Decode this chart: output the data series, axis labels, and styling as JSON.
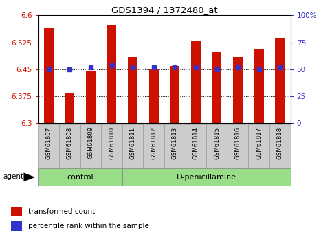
{
  "title": "GDS1394 / 1372480_at",
  "samples": [
    "GSM61807",
    "GSM61808",
    "GSM61809",
    "GSM61810",
    "GSM61811",
    "GSM61812",
    "GSM61813",
    "GSM61814",
    "GSM61815",
    "GSM61816",
    "GSM61817",
    "GSM61818"
  ],
  "transformed_count": [
    6.565,
    6.385,
    6.445,
    6.575,
    6.485,
    6.45,
    6.46,
    6.53,
    6.5,
    6.485,
    6.505,
    6.535
  ],
  "percentile_rank": [
    50,
    50,
    52,
    54,
    52,
    52,
    52,
    52,
    50,
    52,
    50,
    52
  ],
  "groups": {
    "control": [
      0,
      1,
      2,
      3
    ],
    "D-penicillamine": [
      4,
      5,
      6,
      7,
      8,
      9,
      10,
      11
    ]
  },
  "ylim_left": [
    6.3,
    6.6
  ],
  "ylim_right": [
    0,
    100
  ],
  "yticks_left": [
    6.3,
    6.375,
    6.45,
    6.525,
    6.6
  ],
  "yticks_right": [
    0,
    25,
    50,
    75,
    100
  ],
  "bar_color": "#cc1100",
  "percentile_color": "#3333cc",
  "bar_bottom": 6.3,
  "cell_color": "#cccccc",
  "cell_edge_color": "#999999",
  "group_color_control": "#99dd88",
  "group_color_dp": "#99dd88",
  "left_tick_color": "#cc1100",
  "right_tick_color": "#3333cc",
  "legend_items": [
    "transformed count",
    "percentile rank within the sample"
  ],
  "bar_width": 0.45
}
